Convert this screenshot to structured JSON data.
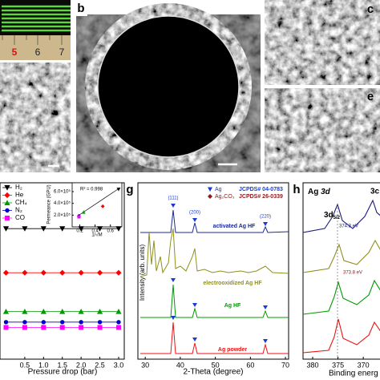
{
  "figure": {
    "panel_labels": [
      "b",
      "c",
      "e",
      "g",
      "h"
    ],
    "ruler_labels": [
      "5",
      "6",
      "7"
    ]
  },
  "chart_data": [
    {
      "type": "line",
      "xlabel": "Pressure drop (bar)",
      "legend": "upper left",
      "xlim": [
        -0.16,
        3.15
      ],
      "xticks": [
        0.5,
        {
          "value": 1,
          "label": "1.0"
        },
        1.5,
        {
          "value": 2,
          "label": "2.0"
        },
        2.5,
        {
          "value": 3,
          "label": "3.0"
        }
      ],
      "ylim": [
        0,
        10
      ],
      "x": [
        0,
        0.5,
        1,
        1.5,
        2,
        2.5,
        3
      ],
      "series": [
        {
          "name": "H₂",
          "color": "#000000",
          "marker": "triangle-down",
          "values": [
            7.4,
            7.4,
            7.4,
            7.4,
            7.4,
            7.4,
            7.4
          ]
        },
        {
          "name": "He",
          "color": "#ff0000",
          "marker": "diamond",
          "values": [
            4.9,
            4.9,
            4.9,
            4.9,
            4.9,
            4.9,
            4.9
          ]
        },
        {
          "name": "CH₄",
          "color": "#009900",
          "marker": "triangle-up",
          "values": [
            2.7,
            2.7,
            2.7,
            2.7,
            2.7,
            2.7,
            2.7
          ]
        },
        {
          "name": "N₂",
          "color": "#0000cc",
          "marker": "circle",
          "values": [
            2.1,
            2.1,
            2.1,
            2.1,
            2.1,
            2.1,
            2.1
          ]
        },
        {
          "name": "CO",
          "color": "#ff00ff",
          "marker": "square",
          "values": [
            1.8,
            1.8,
            1.8,
            1.8,
            1.8,
            1.8,
            1.8
          ]
        }
      ]
    },
    {
      "type": "scatter",
      "xlabel": "1/√M",
      "ylabel": "Permeance (GPU)",
      "annotation": "R² = 0.998",
      "xlim": [
        0.1,
        0.75
      ],
      "xticks": [
        0.2,
        0.4,
        0.6
      ],
      "ylim": [
        0,
        750000
      ],
      "yticks": [
        {
          "value": 200000,
          "label": "2.0×10⁵"
        },
        {
          "value": 400000,
          "label": "4.0×10⁵"
        },
        {
          "value": 600000,
          "label": "6.0×10⁵"
        }
      ],
      "x": [
        0.707,
        0.5,
        0.25,
        0.189,
        0.189
      ],
      "values": [
        640000,
        350000,
        250000,
        190000,
        170000
      ],
      "colors": [
        "#000000",
        "#ff0000",
        "#009900",
        "#0000cc",
        "#ff00ff"
      ],
      "markers": [
        "triangle-down",
        "diamond",
        "triangle-up",
        "circle",
        "square"
      ]
    },
    {
      "type": "xrd",
      "xlabel": "2-Theta (degree)",
      "ylabel": "Intensity (arb. units)",
      "xlim": [
        27.9,
        70.9
      ],
      "xticks": [
        30,
        40,
        50,
        60,
        70
      ],
      "legend": [
        {
          "name": "Ag",
          "ref": "JCPDS# 04-0783",
          "color": "#1a3ccc"
        },
        {
          "name": "Ag₂CO₃",
          "ref": "JCPDS# 26-0339",
          "color": "#8b1a1a"
        }
      ],
      "peak_labels": [
        "(111)",
        "(200)",
        "(220)"
      ],
      "traces": [
        {
          "name": "activated Ag HF",
          "color": "#1a2a99"
        },
        {
          "name": "electrooxidized Ag HF",
          "color": "#8f8f1f"
        },
        {
          "name": "Ag HF",
          "color": "#009900"
        },
        {
          "name": "Ag powder",
          "color": "#ee1111"
        }
      ]
    },
    {
      "type": "xps",
      "title": "Ag",
      "title_italic": "3d",
      "xlabel": "Binding energ",
      "xlim": [
        381.9,
        366.7
      ],
      "xticks": [
        380,
        375,
        370
      ],
      "peak_main": "3d",
      "peak_sub": "5/2",
      "peak_other": "3c",
      "annotations": [
        "374.3 eV",
        "373.8 eV"
      ]
    }
  ]
}
